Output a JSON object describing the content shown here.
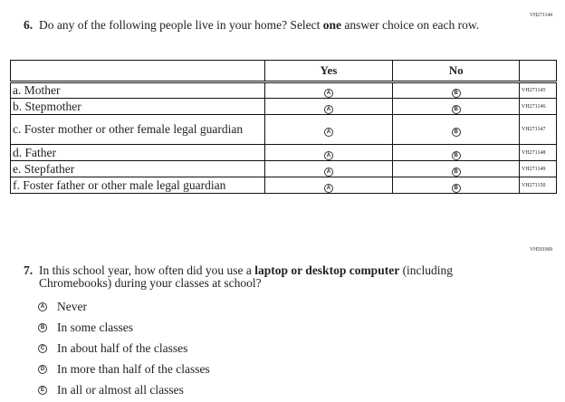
{
  "q6": {
    "code": "VH271144",
    "number": "6.",
    "text_before": "Do any of the following people live in your home? Select ",
    "text_bold": "one",
    "text_after": " answer choice on each row.",
    "headers": [
      "",
      "Yes",
      "No",
      ""
    ],
    "yes_letter": "A",
    "no_letter": "B",
    "rows": [
      {
        "label": "a.  Mother",
        "code": "VH271145"
      },
      {
        "label": "b.  Stepmother",
        "code": "VH271146"
      },
      {
        "label": "c.  Foster mother or other female legal guardian",
        "code": "VH271147"
      },
      {
        "label": "d.  Father",
        "code": "VH271148"
      },
      {
        "label": "e.  Stepfather",
        "code": "VH271149"
      },
      {
        "label": "f.  Foster father or other male legal guardian",
        "code": "VH271150"
      }
    ]
  },
  "q7": {
    "code": "VH591969",
    "number": "7.",
    "text_before": "In this school year, how often did you use a ",
    "text_bold": "laptop or desktop computer",
    "text_after": " (including Chromebooks) during your classes at school?",
    "options": [
      {
        "letter": "A",
        "label": "Never"
      },
      {
        "letter": "B",
        "label": "In some classes"
      },
      {
        "letter": "C",
        "label": "In about half of the classes"
      },
      {
        "letter": "D",
        "label": "In more than half of the classes"
      },
      {
        "letter": "E",
        "label": "In all or almost all classes"
      }
    ]
  }
}
